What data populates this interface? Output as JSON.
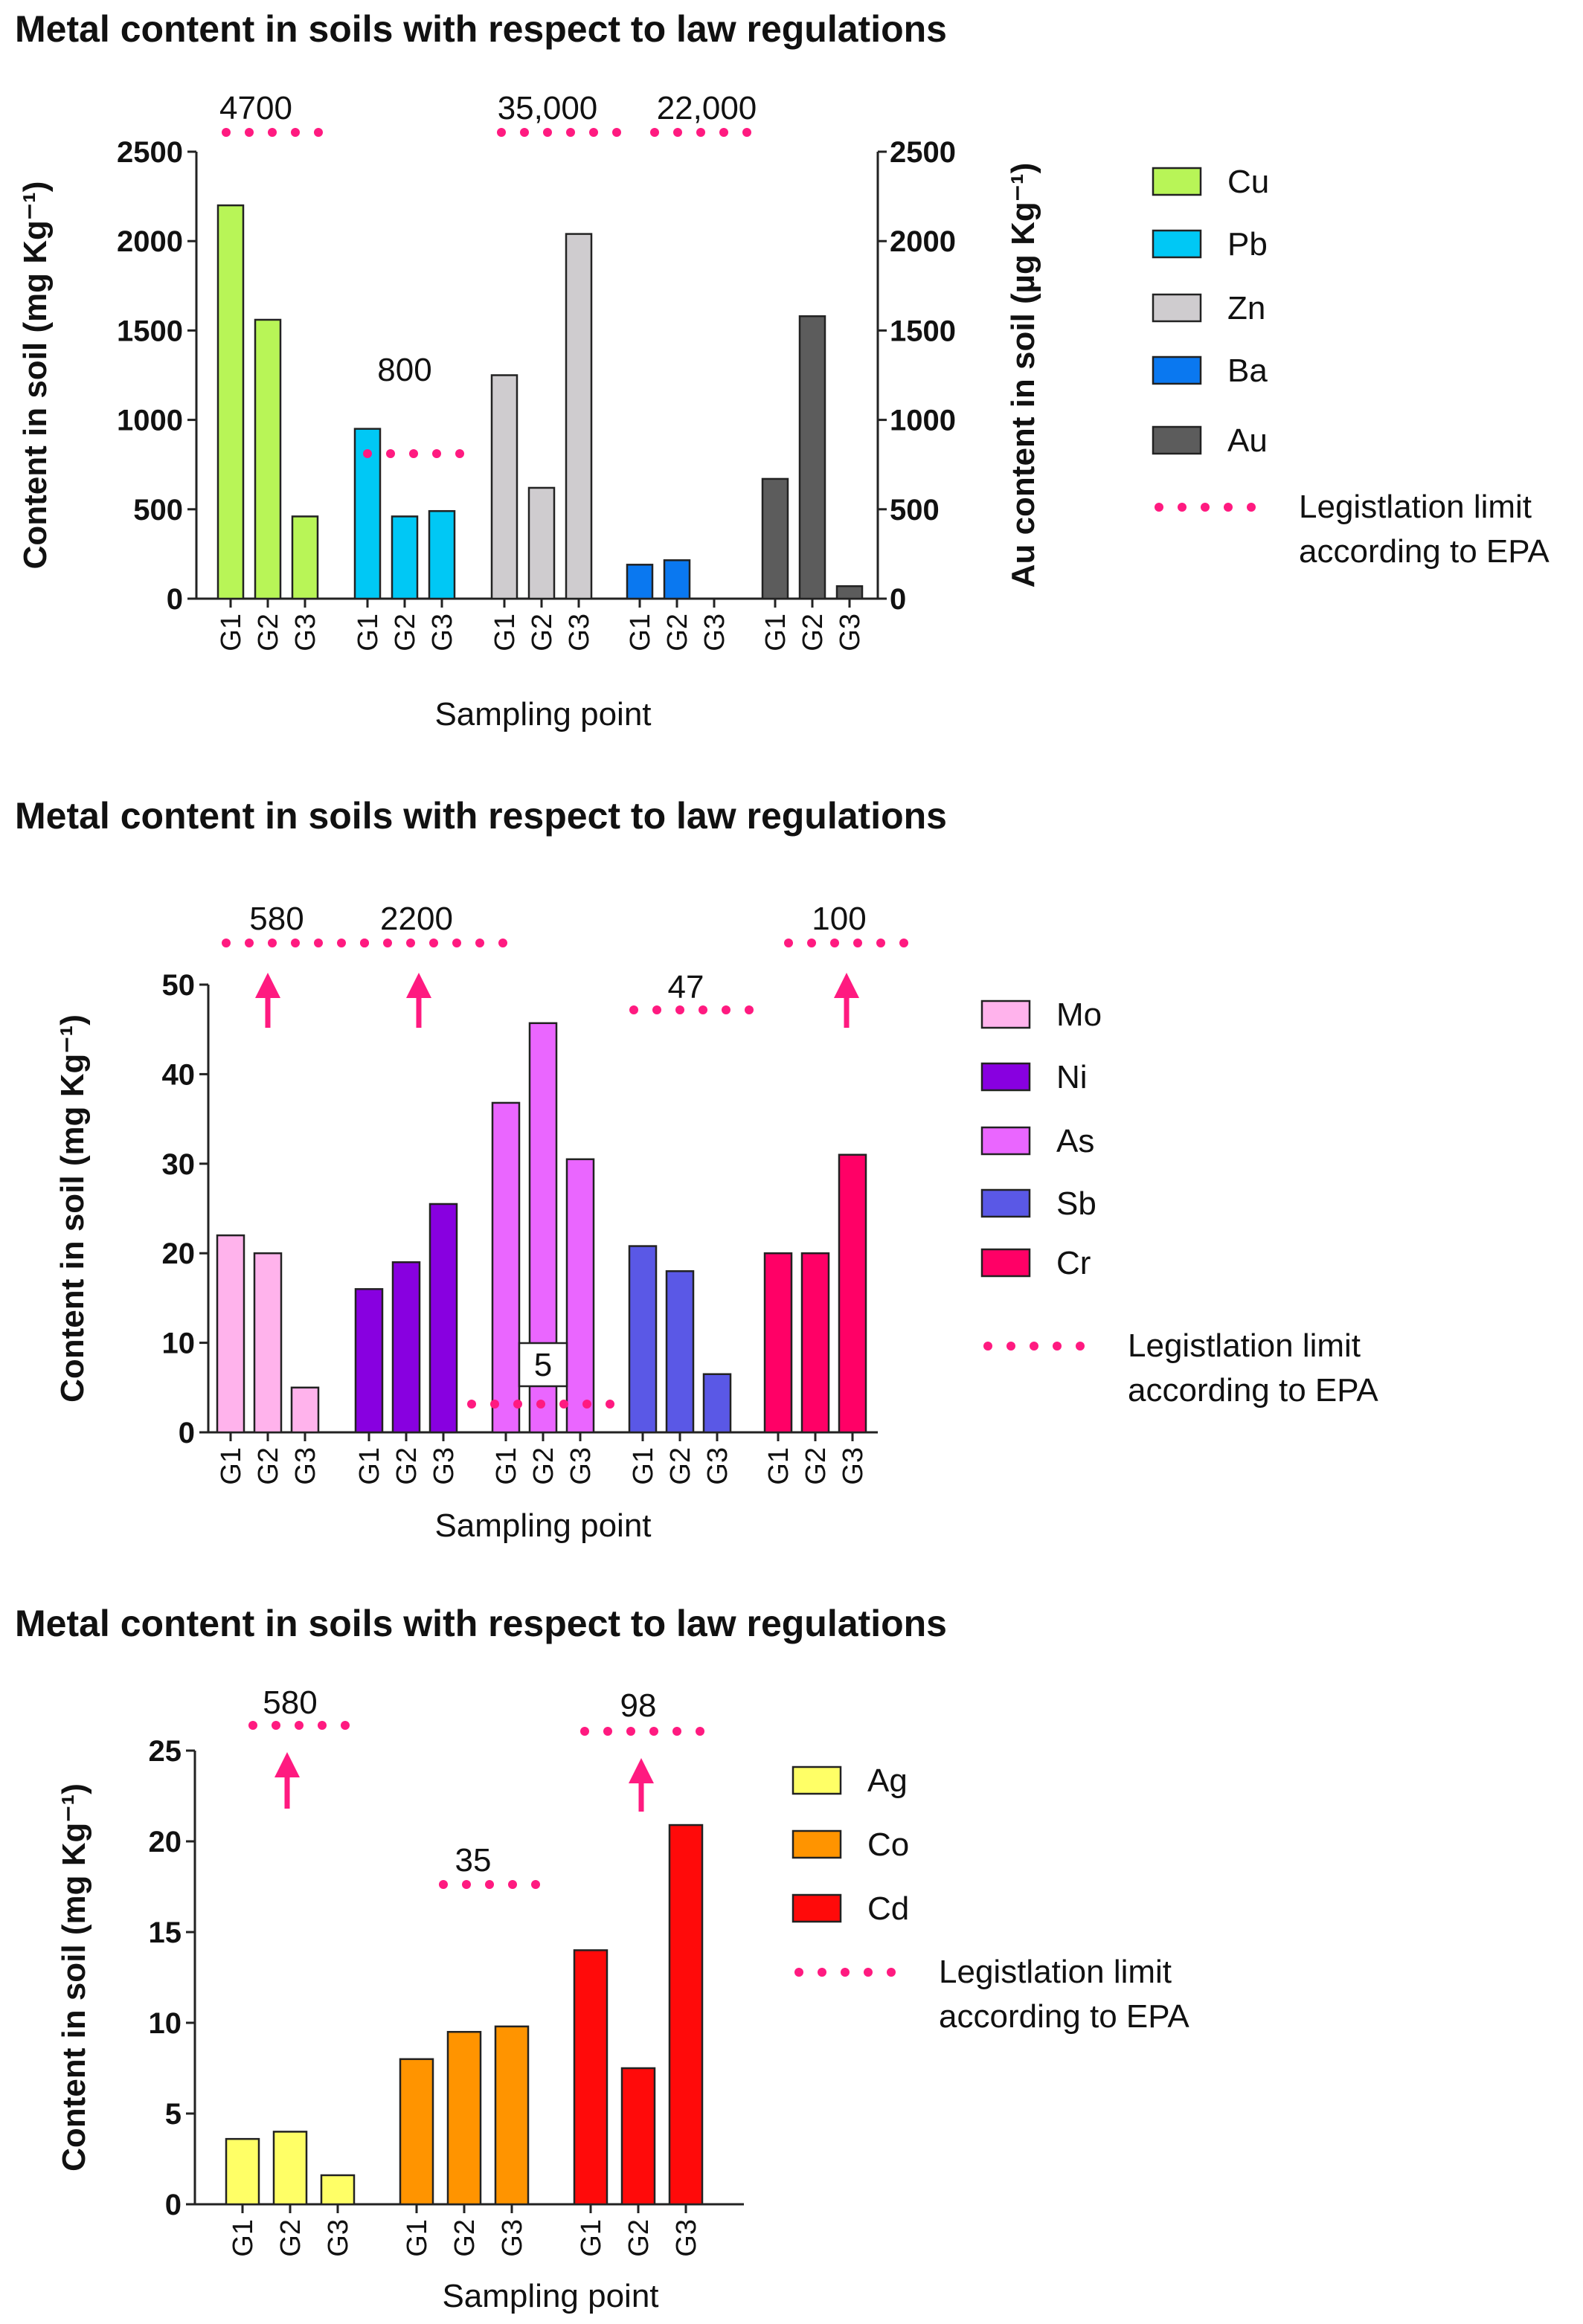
{
  "chart_data": [
    {
      "type": "bar",
      "title": "Metal content in soils with respect to law regulations",
      "ylabel": "Content in soil (mg Kg⁻¹)",
      "y2label": "Au content in soil (µg Kg⁻¹)",
      "xlabel": "Sampling point",
      "ylim": [
        0,
        2500
      ],
      "yticks": [
        "0",
        "500",
        "1000",
        "1500",
        "2000",
        "2500"
      ],
      "categories": [
        "G1",
        "G2",
        "G3"
      ],
      "series": [
        {
          "name": "Cu",
          "color": "#b8f557",
          "values": [
            2200,
            1560,
            460
          ]
        },
        {
          "name": "Pb",
          "color": "#00c8f5",
          "values": [
            950,
            460,
            490
          ]
        },
        {
          "name": "Zn",
          "color": "#cfcccf",
          "values": [
            1250,
            620,
            2040
          ]
        },
        {
          "name": "Ba",
          "color": "#0a78f0",
          "values": [
            190,
            215,
            0
          ]
        },
        {
          "name": "Au",
          "color": "#5c5c5c",
          "values": [
            670,
            1580,
            70
          ],
          "axis": "right"
        }
      ],
      "limits": [
        {
          "metal": "Cu",
          "label": "4700"
        },
        {
          "metal": "Pb",
          "label": "800"
        },
        {
          "metal": "Zn",
          "label": "35,000"
        },
        {
          "metal": "Ba",
          "label": "22,000"
        }
      ],
      "legend_limit_label": [
        "Legistlation limit",
        "according to EPA"
      ],
      "limit_color": "#ff1a80"
    },
    {
      "type": "bar",
      "title": "Metal content in soils with respect to law regulations",
      "ylabel": "Content in soil (mg Kg⁻¹)",
      "xlabel": "Sampling point",
      "ylim": [
        0,
        50
      ],
      "yticks": [
        "0",
        "10",
        "20",
        "30",
        "40",
        "50"
      ],
      "categories": [
        "G1",
        "G2",
        "G3"
      ],
      "series": [
        {
          "name": "Mo",
          "color": "#ffb3ec",
          "values": [
            22,
            20,
            5
          ]
        },
        {
          "name": "Ni",
          "color": "#8800e0",
          "values": [
            16,
            19,
            25.5
          ]
        },
        {
          "name": "As",
          "color": "#ea66ff",
          "values": [
            36.8,
            45.7,
            30.5
          ]
        },
        {
          "name": "Sb",
          "color": "#5a58e6",
          "values": [
            20.8,
            18,
            6.5
          ]
        },
        {
          "name": "Cr",
          "color": "#ff0066",
          "values": [
            20,
            20,
            31
          ]
        }
      ],
      "limits": [
        {
          "metal": "Mo",
          "label": "580"
        },
        {
          "metal": "Ni",
          "label": "2200"
        },
        {
          "metal": "As",
          "label": "5"
        },
        {
          "metal": "Sb",
          "label": "47"
        },
        {
          "metal": "Cr",
          "label": "100"
        }
      ],
      "legend_limit_label": [
        "Legistlation limit",
        "according to EPA"
      ],
      "limit_color": "#ff1a80"
    },
    {
      "type": "bar",
      "title": "Metal content in soils with respect to law regulations",
      "ylabel": "Content in soil (mg Kg⁻¹)",
      "xlabel": "Sampling point",
      "ylim": [
        0,
        25
      ],
      "yticks": [
        "0",
        "5",
        "10",
        "15",
        "20",
        "25"
      ],
      "categories": [
        "G1",
        "G2",
        "G3"
      ],
      "series": [
        {
          "name": "Ag",
          "color": "#ffff66",
          "values": [
            3.6,
            4.0,
            1.6
          ]
        },
        {
          "name": "Co",
          "color": "#ff9400",
          "values": [
            8.0,
            9.5,
            9.8
          ]
        },
        {
          "name": "Cd",
          "color": "#ff0a0a",
          "values": [
            14.0,
            7.5,
            20.9
          ]
        }
      ],
      "limits": [
        {
          "metal": "Ag",
          "label": "580"
        },
        {
          "metal": "Co",
          "label": "35"
        },
        {
          "metal": "Cd",
          "label": "98"
        }
      ],
      "legend_limit_label": [
        "Legistlation limit",
        "according to EPA"
      ],
      "limit_color": "#ff1a80"
    }
  ]
}
